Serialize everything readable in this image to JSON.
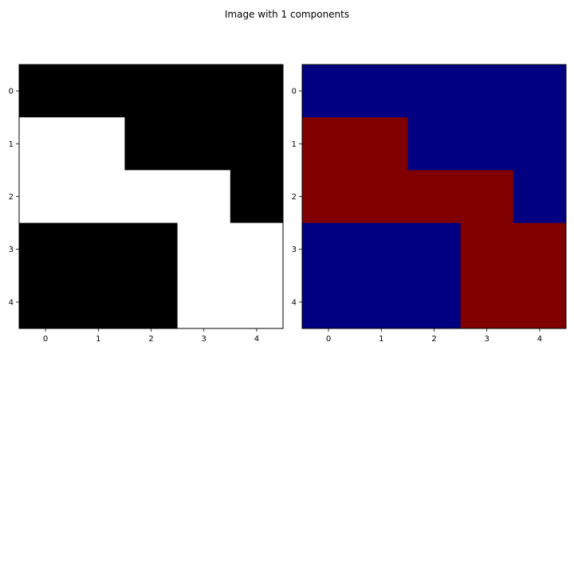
{
  "title": "Image with 1 components",
  "chart_data": [
    {
      "type": "heatmap",
      "title": "",
      "xlabel": "",
      "ylabel": "",
      "x": [
        0,
        1,
        2,
        3,
        4
      ],
      "y": [
        0,
        1,
        2,
        3,
        4
      ],
      "xticks": [
        "0",
        "1",
        "2",
        "3",
        "4"
      ],
      "yticks": [
        "0",
        "1",
        "2",
        "3",
        "4"
      ],
      "xlim": [
        -0.5,
        4.5
      ],
      "ylim": [
        4.5,
        -0.5
      ],
      "colormap": "gray",
      "colors": {
        "0": "#000000",
        "1": "#ffffff"
      },
      "values": [
        [
          0,
          0,
          0,
          0,
          0
        ],
        [
          1,
          1,
          0,
          0,
          0
        ],
        [
          1,
          1,
          1,
          1,
          0
        ],
        [
          0,
          0,
          0,
          1,
          1
        ],
        [
          0,
          0,
          0,
          1,
          1
        ]
      ]
    },
    {
      "type": "heatmap",
      "title": "",
      "xlabel": "",
      "ylabel": "",
      "x": [
        0,
        1,
        2,
        3,
        4
      ],
      "y": [
        0,
        1,
        2,
        3,
        4
      ],
      "xticks": [
        "0",
        "1",
        "2",
        "3",
        "4"
      ],
      "yticks": [
        "0",
        "1",
        "2",
        "3",
        "4"
      ],
      "xlim": [
        -0.5,
        4.5
      ],
      "ylim": [
        4.5,
        -0.5
      ],
      "colormap": "jet",
      "colors": {
        "0": "#000080",
        "1": "#800000"
      },
      "values": [
        [
          0,
          0,
          0,
          0,
          0
        ],
        [
          1,
          1,
          0,
          0,
          0
        ],
        [
          1,
          1,
          1,
          1,
          0
        ],
        [
          0,
          0,
          0,
          1,
          1
        ],
        [
          0,
          0,
          0,
          1,
          1
        ]
      ]
    }
  ]
}
